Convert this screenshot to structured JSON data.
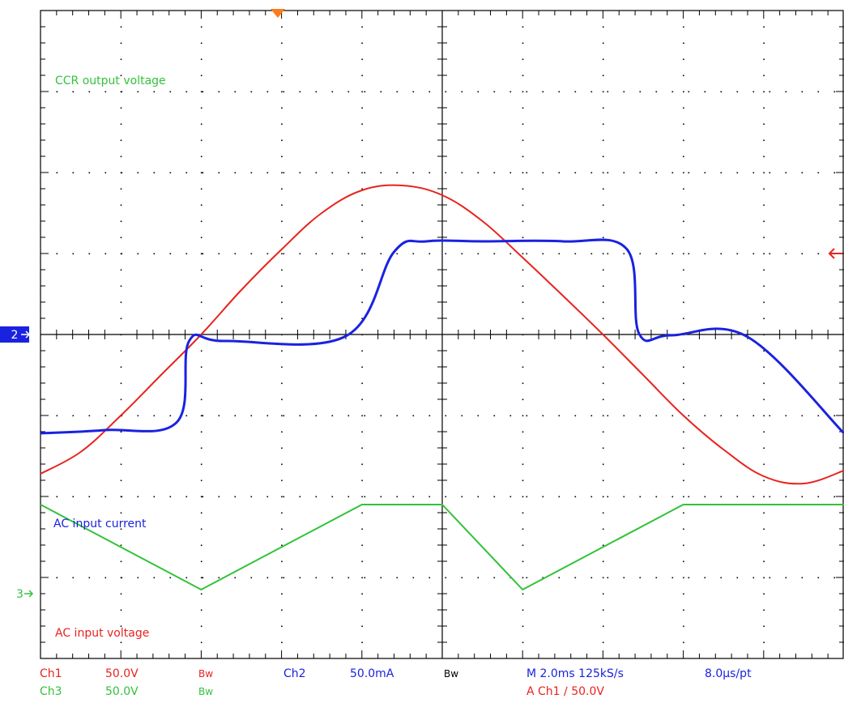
{
  "colors": {
    "ch1": "#e8231f",
    "ch2": "#1a22e0",
    "ch3": "#33c23a",
    "grid": "#000000",
    "trigger": "#ff7a1a",
    "marker2_bg": "#1a22e0"
  },
  "annotations": {
    "ccr_output": "CCR output voltage",
    "ac_current": "AC input current",
    "ac_voltage": "AC input voltage"
  },
  "markers": {
    "ch2": "2",
    "ch3": "3"
  },
  "status": {
    "ch1_name": "Ch1",
    "ch1_scale": "50.0V",
    "ch1_bw": "Bw",
    "ch3_name": "Ch3",
    "ch3_scale": "50.0V",
    "ch3_bw": "Bw",
    "ch2_name": "Ch2",
    "ch2_scale": "50.0mA",
    "ch2_bw": "Bw",
    "timebase": "M 2.0ms 125kS/s",
    "trigger": "A  Ch1  ∕  50.0V",
    "resolution": "8.0µs/pt"
  },
  "chart_data": {
    "type": "line",
    "x_unit": "div",
    "y_unit": "div",
    "xlim": [
      0,
      10
    ],
    "ylim": [
      -4,
      4
    ],
    "grid": true,
    "series": [
      {
        "name": "AC input voltage",
        "color": "#e8231f",
        "x": [
          0,
          0.5,
          1,
          1.5,
          2,
          2.5,
          3,
          3.5,
          4,
          4.5,
          5,
          5.5,
          6,
          6.5,
          7,
          7.5,
          8,
          8.5,
          9,
          9.5,
          10
        ],
        "y": [
          -1.72,
          -1.45,
          -1.0,
          -0.5,
          0.0,
          0.55,
          1.05,
          1.5,
          1.78,
          1.84,
          1.72,
          1.4,
          0.95,
          0.48,
          0.0,
          -0.5,
          -1.0,
          -1.42,
          -1.75,
          -1.84,
          -1.68
        ]
      },
      {
        "name": "AC input current",
        "color": "#1a22e0",
        "x": [
          0,
          0.8,
          1.7,
          1.85,
          2.3,
          3.8,
          4.4,
          4.8,
          5.5,
          6.5,
          7.3,
          7.45,
          7.85,
          8.8,
          10
        ],
        "y": [
          -1.22,
          -1.18,
          -1.08,
          -0.08,
          -0.08,
          -0.02,
          1.02,
          1.15,
          1.15,
          1.15,
          1.05,
          0.01,
          -0.01,
          -0.03,
          -1.22
        ]
      },
      {
        "name": "CCR output voltage",
        "color": "#33c23a",
        "x": [
          0,
          2,
          4,
          5,
          6,
          8,
          10
        ],
        "y": [
          -2.1,
          -3.15,
          -2.1,
          -2.1,
          -3.15,
          -2.1,
          -2.1
        ]
      }
    ]
  }
}
